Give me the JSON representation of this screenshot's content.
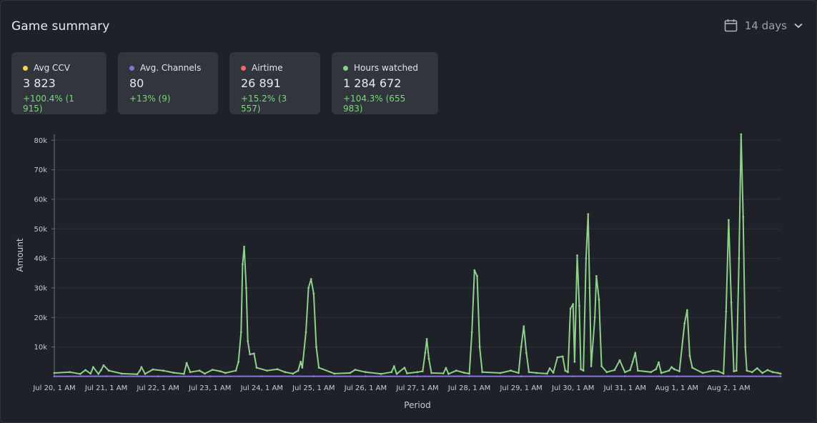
{
  "header": {
    "title": "Game summary",
    "range_label": "14 days",
    "calendar_icon": "calendar-icon",
    "dropdown_icon": "chevron-down-icon"
  },
  "cards": [
    {
      "label": "Avg CCV",
      "value": "3 823",
      "delta": "+100.4% (1 915)",
      "color": "#f5d44a"
    },
    {
      "label": "Avg. Channels",
      "value": "80",
      "delta": "+13% (9)",
      "color": "#7c74d6"
    },
    {
      "label": "Airtime",
      "value": "26 891",
      "delta": "+15.2% (3 557)",
      "color": "#ef6b6b"
    },
    {
      "label": "Hours watched",
      "value": "1 284 672",
      "delta": "+104.3% (655 983)",
      "color": "#86d086"
    }
  ],
  "colors": {
    "background": "#1e2228",
    "card": "#31353c",
    "grid": "#2c3037",
    "hours_line": "#8fd08a",
    "channels_line": "#8a73d8",
    "positive": "#7fd67c"
  },
  "chart_data": {
    "type": "line",
    "ylabel": "Amount",
    "xlabel": "Period",
    "ylim": [
      0,
      82000
    ],
    "yticks": [
      10000,
      20000,
      30000,
      40000,
      50000,
      60000,
      70000,
      80000
    ],
    "ytick_labels": [
      "10k",
      "20k",
      "30k",
      "40k",
      "50k",
      "60k",
      "70k",
      "80k"
    ],
    "xlim": [
      0,
      14
    ],
    "xticks": [
      0,
      1,
      2,
      3,
      4,
      5,
      6,
      7,
      8,
      9,
      10,
      11,
      12,
      13
    ],
    "xtick_labels": [
      "Jul 20, 1 AM",
      "Jul 21, 1 AM",
      "Jul 22, 1 AM",
      "Jul 23, 1 AM",
      "Jul 24, 1 AM",
      "Jul 25, 1 AM",
      "Jul 26, 1 AM",
      "Jul 27, 1 AM",
      "Jul 28, 1 AM",
      "Jul 29, 1 AM",
      "Jul 30, 1 AM",
      "Jul 31, 1 AM",
      "Aug 1, 1 AM",
      "Aug 2, 1 AM"
    ],
    "grid": true,
    "series": [
      {
        "name": "Hours watched",
        "color": "#8fd08a",
        "points": [
          [
            0.0,
            1200
          ],
          [
            0.3,
            1500
          ],
          [
            0.5,
            900
          ],
          [
            0.6,
            2200
          ],
          [
            0.7,
            1000
          ],
          [
            0.75,
            3200
          ],
          [
            0.85,
            900
          ],
          [
            0.9,
            2100
          ],
          [
            0.95,
            3800
          ],
          [
            1.05,
            2000
          ],
          [
            1.3,
            1000
          ],
          [
            1.6,
            800
          ],
          [
            1.65,
            2000
          ],
          [
            1.68,
            3200
          ],
          [
            1.75,
            900
          ],
          [
            1.9,
            2400
          ],
          [
            2.1,
            2000
          ],
          [
            2.3,
            1300
          ],
          [
            2.5,
            900
          ],
          [
            2.55,
            4600
          ],
          [
            2.62,
            1500
          ],
          [
            2.8,
            2000
          ],
          [
            2.9,
            1000
          ],
          [
            3.05,
            2300
          ],
          [
            3.2,
            1800
          ],
          [
            3.3,
            1200
          ],
          [
            3.5,
            2000
          ],
          [
            3.55,
            5000
          ],
          [
            3.6,
            15000
          ],
          [
            3.63,
            38000
          ],
          [
            3.66,
            44000
          ],
          [
            3.7,
            30000
          ],
          [
            3.73,
            12000
          ],
          [
            3.77,
            7500
          ],
          [
            3.85,
            7800
          ],
          [
            3.9,
            3000
          ],
          [
            4.1,
            2000
          ],
          [
            4.3,
            2500
          ],
          [
            4.45,
            1500
          ],
          [
            4.6,
            1000
          ],
          [
            4.7,
            2000
          ],
          [
            4.75,
            5000
          ],
          [
            4.78,
            3000
          ],
          [
            4.85,
            15000
          ],
          [
            4.9,
            30000
          ],
          [
            4.95,
            33000
          ],
          [
            5.0,
            28000
          ],
          [
            5.05,
            10000
          ],
          [
            5.1,
            3000
          ],
          [
            5.4,
            1000
          ],
          [
            5.7,
            1200
          ],
          [
            5.8,
            2300
          ],
          [
            6.0,
            1500
          ],
          [
            6.3,
            900
          ],
          [
            6.5,
            1500
          ],
          [
            6.55,
            3500
          ],
          [
            6.6,
            900
          ],
          [
            6.75,
            3000
          ],
          [
            6.8,
            1100
          ],
          [
            7.0,
            1500
          ],
          [
            7.1,
            1800
          ],
          [
            7.15,
            8000
          ],
          [
            7.18,
            12700
          ],
          [
            7.22,
            6000
          ],
          [
            7.27,
            1200
          ],
          [
            7.5,
            1100
          ],
          [
            7.55,
            2900
          ],
          [
            7.6,
            900
          ],
          [
            7.75,
            2000
          ],
          [
            7.9,
            1300
          ],
          [
            8.0,
            1000
          ],
          [
            8.05,
            15000
          ],
          [
            8.1,
            36000
          ],
          [
            8.15,
            34000
          ],
          [
            8.2,
            10000
          ],
          [
            8.25,
            1500
          ],
          [
            8.6,
            1200
          ],
          [
            8.8,
            2000
          ],
          [
            8.95,
            1200
          ],
          [
            9.0,
            10000
          ],
          [
            9.05,
            17000
          ],
          [
            9.1,
            8000
          ],
          [
            9.15,
            1500
          ],
          [
            9.3,
            1200
          ],
          [
            9.5,
            1000
          ],
          [
            9.55,
            2800
          ],
          [
            9.62,
            1300
          ],
          [
            9.7,
            6500
          ],
          [
            9.8,
            6800
          ],
          [
            9.85,
            2000
          ],
          [
            9.9,
            1500
          ],
          [
            9.95,
            23000
          ],
          [
            10.0,
            24500
          ],
          [
            10.03,
            5000
          ],
          [
            10.08,
            41000
          ],
          [
            10.12,
            24000
          ],
          [
            10.15,
            2500
          ],
          [
            10.2,
            2000
          ],
          [
            10.25,
            40000
          ],
          [
            10.29,
            55000
          ],
          [
            10.32,
            30000
          ],
          [
            10.35,
            3500
          ],
          [
            10.42,
            20000
          ],
          [
            10.45,
            34000
          ],
          [
            10.5,
            26000
          ],
          [
            10.55,
            3500
          ],
          [
            10.65,
            1500
          ],
          [
            10.8,
            2200
          ],
          [
            10.9,
            5500
          ],
          [
            11.0,
            1500
          ],
          [
            11.1,
            2200
          ],
          [
            11.15,
            5000
          ],
          [
            11.2,
            8000
          ],
          [
            11.25,
            2000
          ],
          [
            11.5,
            1500
          ],
          [
            11.6,
            2500
          ],
          [
            11.65,
            4800
          ],
          [
            11.7,
            1200
          ],
          [
            11.85,
            2000
          ],
          [
            11.9,
            3200
          ],
          [
            11.95,
            2500
          ],
          [
            12.05,
            1800
          ],
          [
            12.15,
            18000
          ],
          [
            12.2,
            22500
          ],
          [
            12.25,
            7000
          ],
          [
            12.3,
            3000
          ],
          [
            12.5,
            1200
          ],
          [
            12.7,
            2000
          ],
          [
            12.8,
            1800
          ],
          [
            12.9,
            1000
          ],
          [
            12.95,
            22000
          ],
          [
            13.0,
            53000
          ],
          [
            13.05,
            25000
          ],
          [
            13.1,
            1800
          ],
          [
            13.15,
            2000
          ],
          [
            13.2,
            40000
          ],
          [
            13.24,
            82000
          ],
          [
            13.28,
            54000
          ],
          [
            13.32,
            10000
          ],
          [
            13.35,
            2000
          ],
          [
            13.45,
            1500
          ],
          [
            13.55,
            2800
          ],
          [
            13.65,
            1200
          ],
          [
            13.75,
            2200
          ],
          [
            13.85,
            1500
          ],
          [
            13.95,
            1200
          ],
          [
            14.0,
            1000
          ]
        ]
      },
      {
        "name": "Avg. Channels",
        "color": "#8a73d8",
        "points": [
          [
            0,
            80
          ],
          [
            1,
            90
          ],
          [
            2,
            70
          ],
          [
            3,
            80
          ],
          [
            4,
            90
          ],
          [
            5,
            85
          ],
          [
            6,
            75
          ],
          [
            7,
            80
          ],
          [
            8,
            90
          ],
          [
            9,
            80
          ],
          [
            10,
            95
          ],
          [
            11,
            85
          ],
          [
            12,
            80
          ],
          [
            13,
            90
          ],
          [
            14,
            80
          ]
        ]
      }
    ]
  }
}
